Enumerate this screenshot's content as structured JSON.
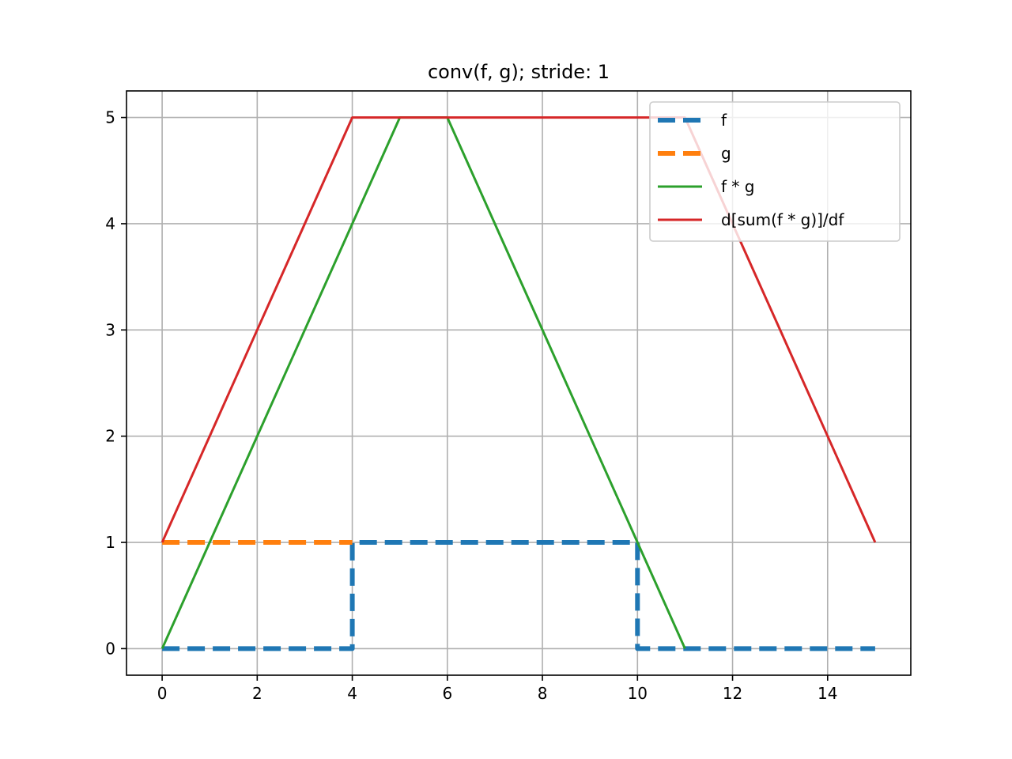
{
  "chart_data": {
    "type": "line",
    "title": "conv(f, g); stride: 1",
    "xlabel": "",
    "ylabel": "",
    "xlim": [
      -0.75,
      15.75
    ],
    "ylim": [
      -0.25,
      5.25
    ],
    "x_ticks": [
      "0",
      "2",
      "4",
      "6",
      "8",
      "10",
      "12",
      "14"
    ],
    "x_tick_values": [
      0,
      2,
      4,
      6,
      8,
      10,
      12,
      14
    ],
    "y_ticks": [
      "0",
      "1",
      "2",
      "3",
      "4",
      "5"
    ],
    "y_tick_values": [
      0,
      1,
      2,
      3,
      4,
      5
    ],
    "grid": true,
    "legend_position": "upper right",
    "series": [
      {
        "name": "f",
        "color": "#1f77b4",
        "line_style": "dashed",
        "x": [
          0,
          1,
          2,
          3,
          4,
          4,
          5,
          6,
          7,
          8,
          9,
          10,
          10,
          11,
          12,
          13,
          14,
          15
        ],
        "y": [
          0,
          0,
          0,
          0,
          0,
          1,
          1,
          1,
          1,
          1,
          1,
          1,
          0,
          0,
          0,
          0,
          0,
          0
        ]
      },
      {
        "name": "g",
        "color": "#ff7f0e",
        "line_style": "dashed",
        "x": [
          0,
          1,
          2,
          3,
          4
        ],
        "y": [
          1,
          1,
          1,
          1,
          1
        ]
      },
      {
        "name": "f * g",
        "color": "#2ca02c",
        "line_style": "solid",
        "x": [
          0,
          1,
          2,
          3,
          4,
          5,
          6,
          7,
          8,
          9,
          10,
          11
        ],
        "y": [
          0,
          1,
          2,
          3,
          4,
          5,
          5,
          4,
          3,
          2,
          1,
          0
        ]
      },
      {
        "name": "d[sum(f * g)]/df",
        "color": "#d62728",
        "line_style": "solid",
        "x": [
          0,
          1,
          2,
          3,
          4,
          5,
          6,
          7,
          8,
          9,
          10,
          11,
          12,
          13,
          14,
          15
        ],
        "y": [
          1,
          2,
          3,
          4,
          5,
          5,
          5,
          5,
          5,
          5,
          5,
          5,
          4,
          3,
          2,
          1
        ]
      }
    ]
  }
}
